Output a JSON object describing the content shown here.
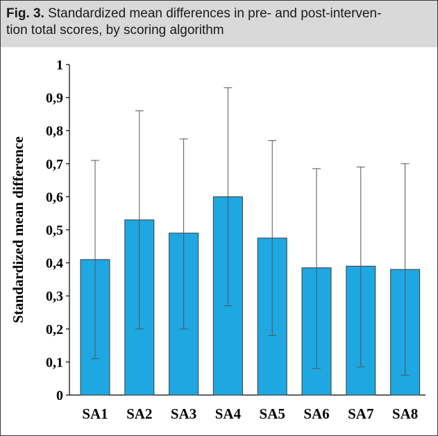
{
  "figure": {
    "label": "Fig. 3.",
    "caption": " Standardized mean differences in pre- and post-interven-",
    "caption_line2": "tion total scores, by scoring algorithm"
  },
  "colors": {
    "bar": "#1fa7e1",
    "bar_stroke": "#3a3a3a",
    "error_bar": "#555555",
    "axis": "#000000",
    "caption_band": "#d9d9d9"
  },
  "chart_data": {
    "type": "bar",
    "ylabel": "Standardized mean difference",
    "xlabel": "",
    "ylim": [
      0,
      1
    ],
    "y_ticks": [
      "0",
      "0,1",
      "0,2",
      "0,3",
      "0,4",
      "0,5",
      "0,6",
      "0,7",
      "0,8",
      "0,9",
      "1"
    ],
    "y_tick_values": [
      0,
      0.1,
      0.2,
      0.3,
      0.4,
      0.5,
      0.6,
      0.7,
      0.8,
      0.9,
      1
    ],
    "categories": [
      "SA1",
      "SA2",
      "SA3",
      "SA4",
      "SA5",
      "SA6",
      "SA7",
      "SA8"
    ],
    "values": [
      0.41,
      0.53,
      0.49,
      0.6,
      0.475,
      0.385,
      0.39,
      0.38
    ],
    "error_low": [
      0.11,
      0.2,
      0.2,
      0.27,
      0.18,
      0.08,
      0.085,
      0.06
    ],
    "error_high": [
      0.71,
      0.86,
      0.775,
      0.93,
      0.77,
      0.685,
      0.69,
      0.7
    ],
    "grid": false,
    "legend": "none"
  }
}
